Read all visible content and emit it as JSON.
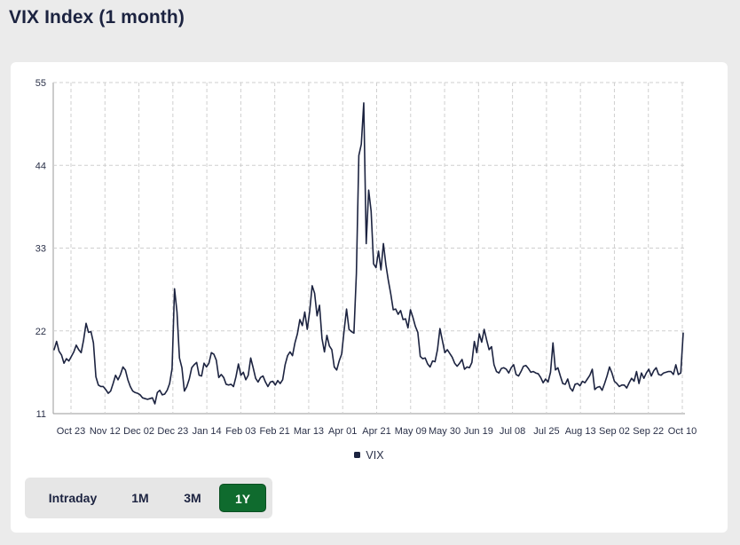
{
  "page": {
    "title": "VIX Index (1 month)"
  },
  "range_buttons": [
    {
      "label": "Intraday",
      "active": false
    },
    {
      "label": "1M",
      "active": false
    },
    {
      "label": "3M",
      "active": false
    },
    {
      "label": "1Y",
      "active": true
    }
  ],
  "colors": {
    "line": "#1c2340",
    "grid": "#cfcfcf",
    "active_button": "#0f6b2e"
  },
  "chart_data": {
    "type": "line",
    "title": "",
    "xlabel": "",
    "ylabel": "",
    "grid": true,
    "legend_position": "bottom",
    "ylim": [
      11,
      55
    ],
    "y_ticks": [
      11,
      22,
      33,
      44,
      55
    ],
    "x_ticks": [
      "Oct 23",
      "Nov 12",
      "Dec 02",
      "Dec 23",
      "Jan 14",
      "Feb 03",
      "Feb 21",
      "Mar 13",
      "Apr 01",
      "Apr 21",
      "May 09",
      "May 30",
      "Jun 19",
      "Jul 08",
      "Jul 25",
      "Aug 13",
      "Sep 02",
      "Sep 22",
      "Oct 10"
    ],
    "series": [
      {
        "name": "VIX",
        "values": [
          19.5,
          20.6,
          19.3,
          18.8,
          17.7,
          18.3,
          18.0,
          18.6,
          19.2,
          20.1,
          19.5,
          19.1,
          20.8,
          23.0,
          21.8,
          21.9,
          20.4,
          15.9,
          14.8,
          14.6,
          14.6,
          14.2,
          13.7,
          14.0,
          15.0,
          16.1,
          15.5,
          16.2,
          17.2,
          16.8,
          15.5,
          14.6,
          14.0,
          13.8,
          13.7,
          13.5,
          13.1,
          13.0,
          12.9,
          13.0,
          13.1,
          12.3,
          13.8,
          14.1,
          13.5,
          13.6,
          14.1,
          15.0,
          17.0,
          27.6,
          24.5,
          18.4,
          17.1,
          14.0,
          14.6,
          15.6,
          17.1,
          17.5,
          17.8,
          16.1,
          16.0,
          17.7,
          17.2,
          17.7,
          19.1,
          18.9,
          18.1,
          15.8,
          16.2,
          15.8,
          14.9,
          14.8,
          14.9,
          14.6,
          15.9,
          17.6,
          16.1,
          16.5,
          15.5,
          16.1,
          18.4,
          17.1,
          15.7,
          15.2,
          15.8,
          16.0,
          15.2,
          14.6,
          15.2,
          15.3,
          14.8,
          15.4,
          15.0,
          15.5,
          17.5,
          18.7,
          19.2,
          18.7,
          20.4,
          21.6,
          23.5,
          22.7,
          24.5,
          22.2,
          24.6,
          28.0,
          27.0,
          24.0,
          25.4,
          21.0,
          19.2,
          21.4,
          20.0,
          19.5,
          17.2,
          16.8,
          18.0,
          18.9,
          22.0,
          24.9,
          22.2,
          21.9,
          21.7,
          29.6,
          45.3,
          46.8,
          52.3,
          33.6,
          40.7,
          37.9,
          30.9,
          30.4,
          32.6,
          30.1,
          33.6,
          30.8,
          28.7,
          26.9,
          24.8,
          24.9,
          24.2,
          24.7,
          23.5,
          23.6,
          22.4,
          24.8,
          23.8,
          22.6,
          21.8,
          18.6,
          18.3,
          18.4,
          17.6,
          17.2,
          18.0,
          17.9,
          19.5,
          22.3,
          20.7,
          19.1,
          19.5,
          19.0,
          18.5,
          17.7,
          17.3,
          17.7,
          18.2,
          16.9,
          17.2,
          17.1,
          17.8,
          20.6,
          19.1,
          21.6,
          20.5,
          22.2,
          20.8,
          19.5,
          19.9,
          17.5,
          16.6,
          16.4,
          17.0,
          17.1,
          16.9,
          16.4,
          17.1,
          17.5,
          16.2,
          16.0,
          16.6,
          17.3,
          17.4,
          17.0,
          16.5,
          16.6,
          16.4,
          16.3,
          15.8,
          15.1,
          15.6,
          15.2,
          16.5,
          20.4,
          16.8,
          17.1,
          16.0,
          15.0,
          14.9,
          15.6,
          14.4,
          14.0,
          14.9,
          15.0,
          14.7,
          15.3,
          15.1,
          15.6,
          16.1,
          16.9,
          14.2,
          14.5,
          14.6,
          14.1,
          15.0,
          16.0,
          17.2,
          16.4,
          15.3,
          15.0,
          14.6,
          14.8,
          14.8,
          14.4,
          15.1,
          15.7,
          15.3,
          16.6,
          15.0,
          16.4,
          15.7,
          16.4,
          16.9,
          16.0,
          16.7,
          17.1,
          16.2,
          16.1,
          16.4,
          16.5,
          16.6,
          16.6,
          16.2,
          17.5,
          16.2,
          16.4,
          21.7
        ]
      }
    ]
  }
}
